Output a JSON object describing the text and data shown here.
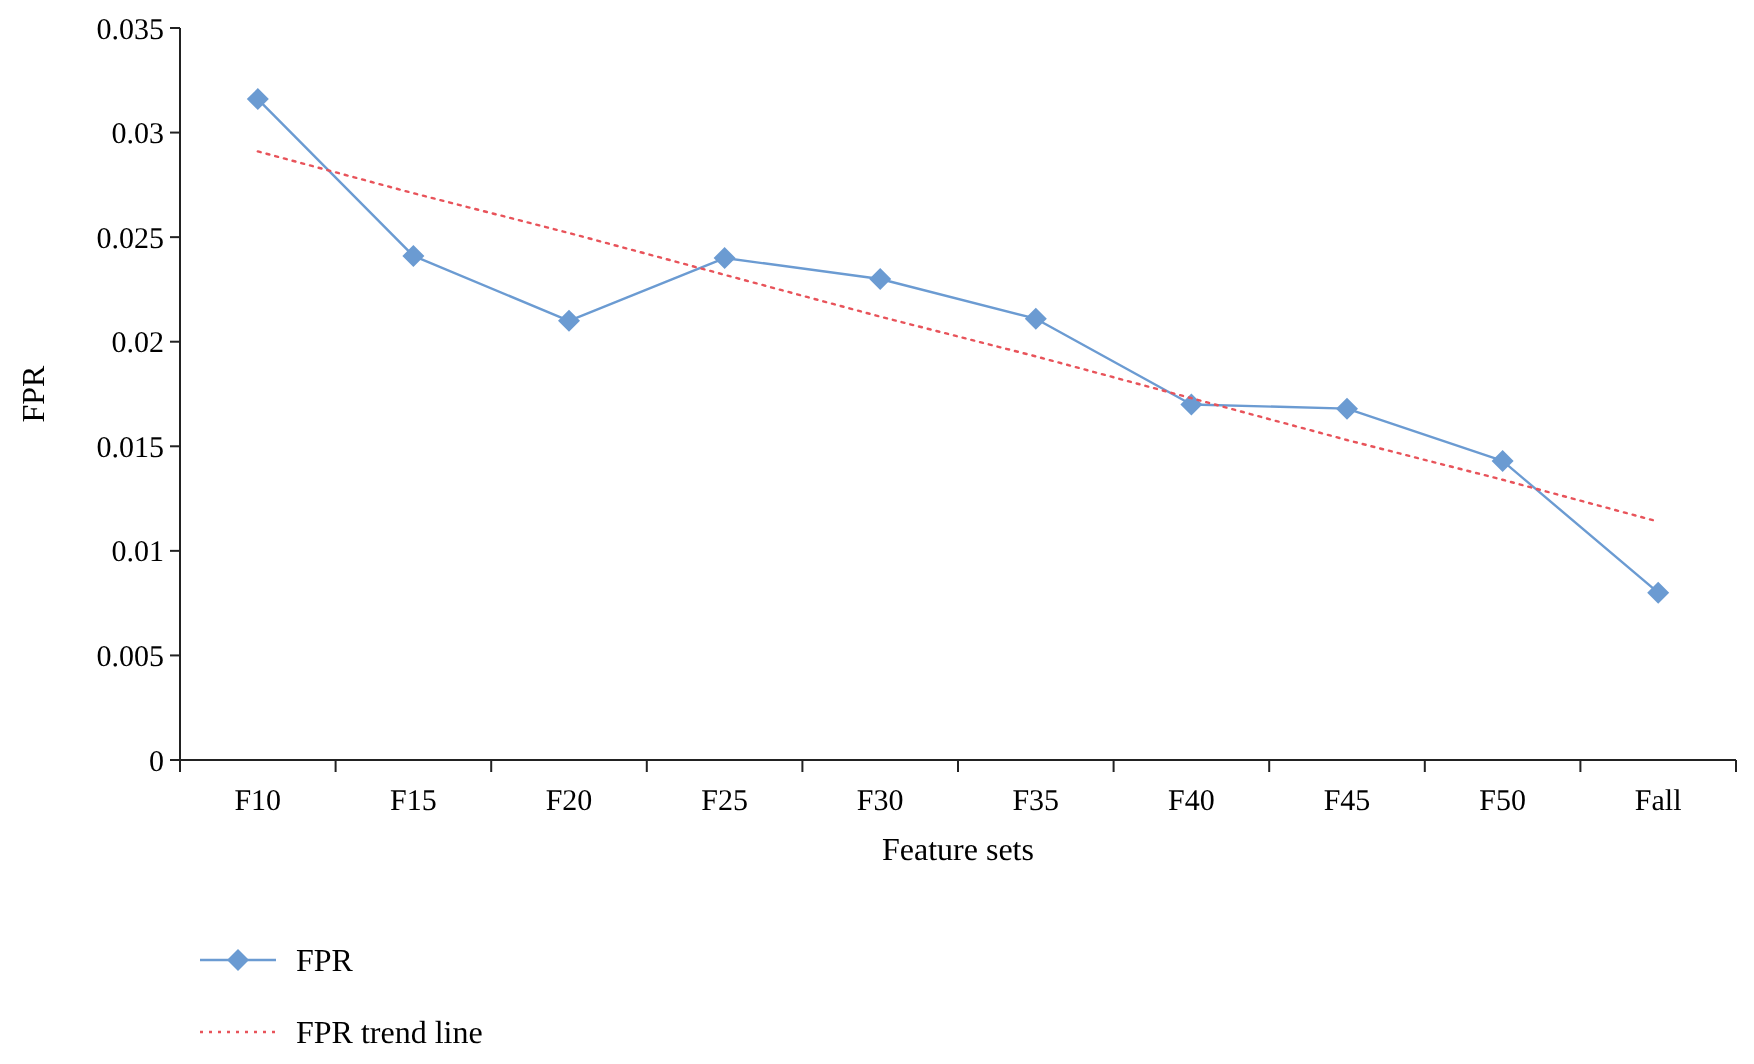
{
  "chart_data": {
    "type": "line",
    "xlabel": "Feature sets",
    "ylabel": "FPR",
    "categories": [
      "F10",
      "F15",
      "F20",
      "F25",
      "F30",
      "F35",
      "F40",
      "F45",
      "F50",
      "Fall"
    ],
    "ylim": [
      0,
      0.035
    ],
    "yticks": [
      0,
      0.005,
      0.01,
      0.015,
      0.02,
      0.025,
      0.03,
      0.035
    ],
    "grid": false,
    "legend": "bottom left",
    "series": [
      {
        "name": "FPR",
        "color": "#6b9bd2",
        "marker": "diamond",
        "line_style": "solid",
        "values": [
          0.0316,
          0.0241,
          0.021,
          0.024,
          0.023,
          0.0211,
          0.017,
          0.0168,
          0.0143,
          0.008
        ]
      },
      {
        "name": "FPR trend line",
        "type": "line",
        "color": "#e8535a",
        "marker": "none",
        "line_style": "dotted",
        "values": [
          0.0291,
          0.0271,
          0.0252,
          0.0232,
          0.0212,
          0.0193,
          0.0173,
          0.0153,
          0.0134,
          0.0114
        ]
      }
    ]
  }
}
